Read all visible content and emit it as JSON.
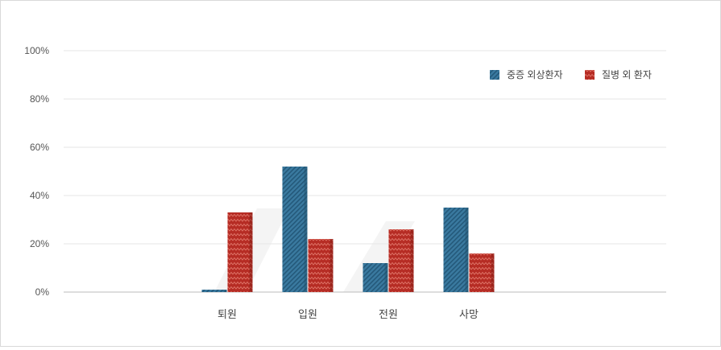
{
  "chart_data": {
    "type": "bar",
    "categories": [
      "퇴원",
      "입원",
      "전원",
      "사망"
    ],
    "series": [
      {
        "name": "중증 외상환자",
        "values": [
          1,
          52,
          12,
          35
        ]
      },
      {
        "name": "질병 외 환자",
        "values": [
          33,
          22,
          26,
          16
        ]
      }
    ],
    "y_ticks": [
      "0%",
      "20%",
      "40%",
      "60%",
      "80%",
      "100%"
    ],
    "ylim": [
      0,
      100
    ],
    "grid": true,
    "legend_position": "top-right",
    "colors": {
      "series1": "#2f6b8e",
      "series2": "#a9241d",
      "grid": "#e6e6e6",
      "axis": "#bbbbbb"
    }
  }
}
